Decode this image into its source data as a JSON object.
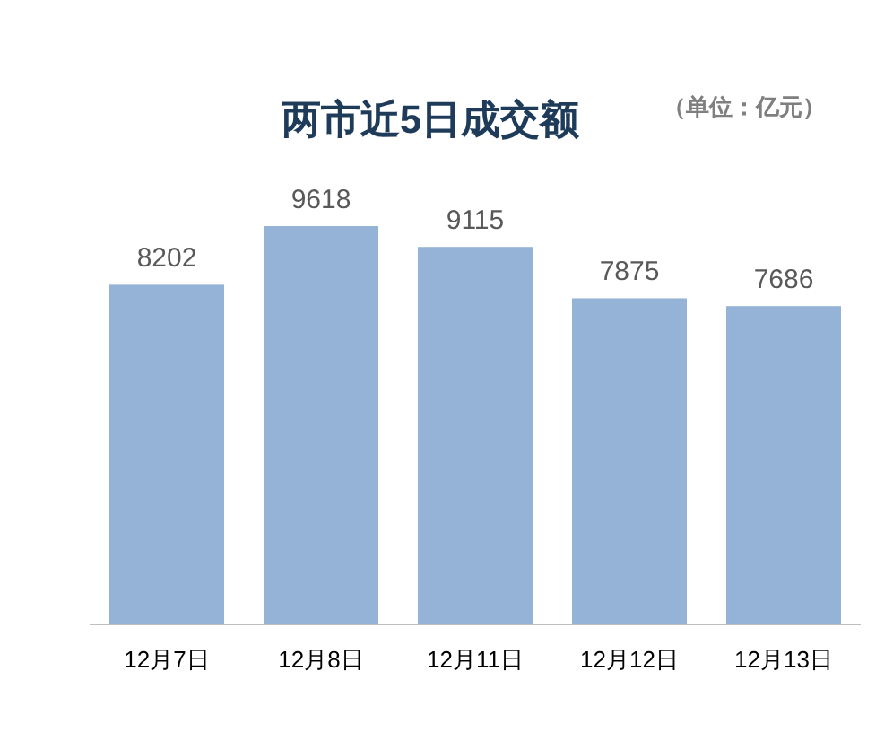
{
  "chart_data": {
    "type": "bar",
    "title": "两市近5日成交额",
    "subtitle": "（单位：亿元）",
    "categories": [
      "12月7日",
      "12月8日",
      "12月11日",
      "12月12日",
      "12月13日"
    ],
    "values": [
      8202,
      9618,
      9115,
      7875,
      7686
    ],
    "color": "#95b3d7",
    "data_labels": true
  }
}
